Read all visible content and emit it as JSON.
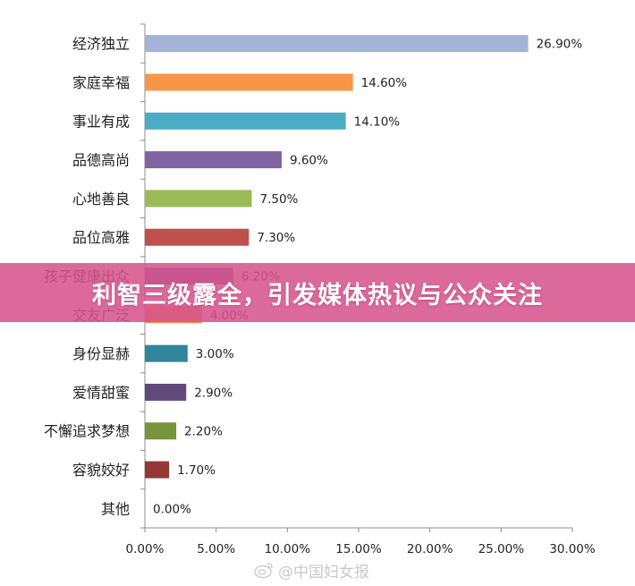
{
  "banner": {
    "headline": "利智三级露全，引发媒体热议与公众关注"
  },
  "watermark": {
    "text": "@中国妇女报"
  },
  "chart_data": {
    "type": "bar",
    "orientation": "horizontal",
    "categories": [
      "经济独立",
      "家庭幸福",
      "事业有成",
      "品德高尚",
      "心地善良",
      "品位高雅",
      "孩子健康出众",
      "交友广泛",
      "身份显赫",
      "爱情甜蜜",
      "不懈追求梦想",
      "容貌姣好",
      "其他"
    ],
    "values": [
      26.9,
      14.6,
      14.1,
      9.6,
      7.5,
      7.3,
      6.2,
      4.0,
      3.0,
      2.9,
      2.2,
      1.7,
      0.0
    ],
    "value_labels": [
      "26.90%",
      "14.60%",
      "14.10%",
      "9.60%",
      "7.50%",
      "7.30%",
      "6.20%",
      "4.00%",
      "3.00%",
      "2.90%",
      "2.20%",
      "1.70%",
      "0.00%"
    ],
    "colors": [
      "#a3b3d7",
      "#f79646",
      "#4bacc6",
      "#8064a2",
      "#9bbb59",
      "#c0504d",
      "#7b5aa6",
      "#f79646",
      "#31859c",
      "#604a7b",
      "#77933c",
      "#953735",
      "#a3b3d7"
    ],
    "xlim": [
      0,
      30
    ],
    "xticks": [
      0,
      5,
      10,
      15,
      20,
      25,
      30
    ],
    "xtick_labels": [
      "0.00%",
      "5.00%",
      "10.00%",
      "15.00%",
      "20.00%",
      "25.00%",
      "30.00%"
    ],
    "title": "",
    "xlabel": "",
    "ylabel": "",
    "grid": false,
    "legend": "none"
  }
}
